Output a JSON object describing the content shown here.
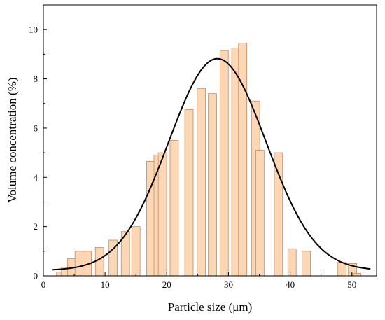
{
  "chart_data": {
    "type": "bar",
    "xlabel": "Particle size (μm)",
    "ylabel": "Volume concentration (%)",
    "xlim": [
      0,
      54
    ],
    "ylim": [
      0,
      11
    ],
    "x_ticks": [
      0,
      10,
      20,
      30,
      40,
      50
    ],
    "y_ticks": [
      0,
      2,
      4,
      6,
      8,
      10
    ],
    "bars": [
      {
        "x": 2.8,
        "value": 0.15
      },
      {
        "x": 3.6,
        "value": 0.35
      },
      {
        "x": 4.6,
        "value": 0.7
      },
      {
        "x": 5.8,
        "value": 1.0
      },
      {
        "x": 7.1,
        "value": 1.0
      },
      {
        "x": 9.1,
        "value": 1.15
      },
      {
        "x": 11.3,
        "value": 1.45
      },
      {
        "x": 13.3,
        "value": 1.8
      },
      {
        "x": 15.0,
        "value": 2.0
      },
      {
        "x": 17.4,
        "value": 4.65
      },
      {
        "x": 18.6,
        "value": 4.9
      },
      {
        "x": 19.3,
        "value": 5.0
      },
      {
        "x": 21.2,
        "value": 5.5
      },
      {
        "x": 23.6,
        "value": 6.75
      },
      {
        "x": 25.6,
        "value": 7.6
      },
      {
        "x": 27.4,
        "value": 7.4
      },
      {
        "x": 29.3,
        "value": 9.15
      },
      {
        "x": 31.2,
        "value": 9.25
      },
      {
        "x": 32.3,
        "value": 9.45
      },
      {
        "x": 34.4,
        "value": 7.1
      },
      {
        "x": 35.1,
        "value": 5.1
      },
      {
        "x": 38.1,
        "value": 5.0
      },
      {
        "x": 40.3,
        "value": 1.1
      },
      {
        "x": 42.6,
        "value": 1.0
      },
      {
        "x": 48.4,
        "value": 0.55
      },
      {
        "x": 50.1,
        "value": 0.5
      },
      {
        "x": 50.8,
        "value": 0.1
      }
    ],
    "bar_width": 1.35,
    "fit_curve": {
      "type": "gaussian",
      "mean": 28.2,
      "sigma": 7.9,
      "peak": 8.6,
      "baseline": 0.22,
      "x_range": [
        1.5,
        53
      ]
    }
  }
}
